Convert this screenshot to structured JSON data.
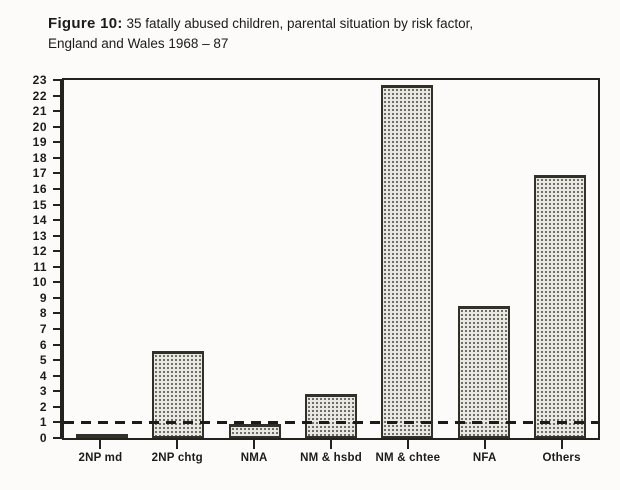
{
  "figure": {
    "label": "Figure 10:",
    "title_rest": " 35 fatally abused children, parental situation by risk factor,",
    "title_line2": "England and Wales 1968 – 87"
  },
  "chart_data": {
    "type": "bar",
    "title": "Figure 10: 35 fatally abused children, parental situation by risk factor, England and Wales 1968 – 87",
    "categories": [
      "2NP md",
      "2NP chtg",
      "NMA",
      "NM & hsbd",
      "NM & chtee",
      "NFA",
      "Others"
    ],
    "values": [
      0.2,
      5.6,
      0.9,
      2.8,
      22.7,
      8.5,
      16.9
    ],
    "bar_patterns": [
      "circles",
      "stipple",
      "stipple",
      "stipple",
      "stipple",
      "stipple",
      "stipple"
    ],
    "xlabel": "",
    "ylabel": "",
    "ylim": [
      0,
      23
    ],
    "yticks": [
      0,
      1,
      2,
      3,
      4,
      5,
      6,
      7,
      8,
      9,
      10,
      11,
      12,
      13,
      14,
      15,
      16,
      17,
      18,
      19,
      20,
      21,
      22,
      23
    ],
    "reference_line_y": 1,
    "grid": false,
    "legend": "none"
  },
  "colors": {
    "ink": "#1d1b18",
    "bar_fill": "#eae8e2",
    "bar_dot": "#4e4a43",
    "background": "#fcfbf9"
  }
}
